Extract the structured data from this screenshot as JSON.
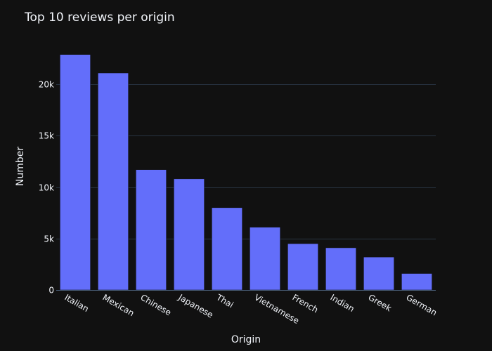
{
  "chart_data": {
    "type": "bar",
    "title": "Top 10 reviews per origin",
    "xlabel": "Origin",
    "ylabel": "Number",
    "categories": [
      "Italian",
      "Mexican",
      "Chinese",
      "Japanese",
      "Thai",
      "Vietnamese",
      "French",
      "Indian",
      "Greek",
      "German"
    ],
    "values": [
      22900,
      21100,
      11700,
      10800,
      8000,
      6100,
      4500,
      4100,
      3200,
      1600
    ],
    "yticks": [
      {
        "value": 0,
        "label": "0"
      },
      {
        "value": 5000,
        "label": "5k"
      },
      {
        "value": 10000,
        "label": "10k"
      },
      {
        "value": 15000,
        "label": "15k"
      },
      {
        "value": 20000,
        "label": "20k"
      }
    ],
    "ylim": [
      0,
      24105
    ],
    "grid": true,
    "colors": {
      "background": "#111111",
      "bar": "#636efa",
      "grid": "#283442",
      "text": "#f2f5fa"
    }
  }
}
